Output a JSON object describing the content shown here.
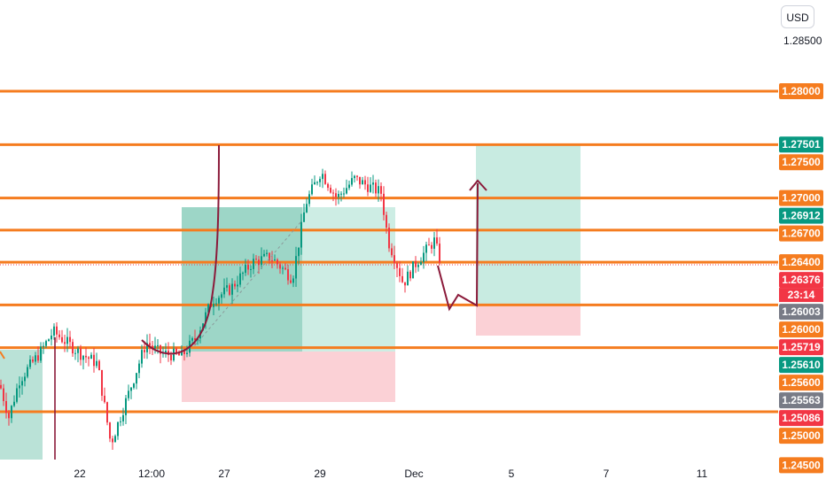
{
  "currency": "USD",
  "chart_data": {
    "type": "candlestick",
    "y_axis": {
      "range": [
        1.2433,
        1.288
      ],
      "tick_labels": [
        "1.28500"
      ],
      "scale": "linear"
    },
    "x_axis": {
      "tick_labels": [
        "22",
        "12:00",
        "27",
        "29",
        "Dec",
        "5",
        "7",
        "11"
      ]
    },
    "horizontal_levels": [
      {
        "value": 1.28,
        "label": "1.28000",
        "color": "#f57c1f"
      },
      {
        "value": 1.275,
        "label": "1.27500",
        "color": "#f57c1f"
      },
      {
        "value": 1.27,
        "label": "1.27000",
        "color": "#f57c1f"
      },
      {
        "value": 1.267,
        "label": "1.26700",
        "color": "#f57c1f"
      },
      {
        "value": 1.264,
        "label": "1.26400",
        "color": "#f57c1f"
      },
      {
        "value": 1.26,
        "label": "1.26000",
        "color": "#f57c1f"
      },
      {
        "value": 1.256,
        "label": "1.25600",
        "color": "#f57c1f"
      },
      {
        "value": 1.25,
        "label": "1.25000",
        "color": "#f57c1f"
      }
    ],
    "price_tags": [
      {
        "value": 1.27501,
        "label": "1.27501",
        "color": "#089981"
      },
      {
        "value": 1.26912,
        "label": "1.26912",
        "color": "#089981"
      },
      {
        "value": 1.26376,
        "label": "1.26376",
        "sublabel": "23:14",
        "color": "#f23645"
      },
      {
        "value": 1.26003,
        "label": "1.26003",
        "color": "#787b86"
      },
      {
        "value": 1.25719,
        "label": "1.25719",
        "color": "#f23645"
      },
      {
        "value": 1.2561,
        "label": "1.25610",
        "color": "#089981"
      },
      {
        "value": 1.25563,
        "label": "1.25563",
        "color": "#787b86"
      },
      {
        "value": 1.25086,
        "label": "1.25086",
        "color": "#f23645"
      },
      {
        "value": 1.245,
        "label": "1.24500",
        "color": "#f57c1f"
      }
    ],
    "last_price": 1.26376,
    "colors": {
      "up": "#089981",
      "down": "#f23645",
      "level": "#f57c1f",
      "drawing": "#8b1a3a"
    }
  }
}
